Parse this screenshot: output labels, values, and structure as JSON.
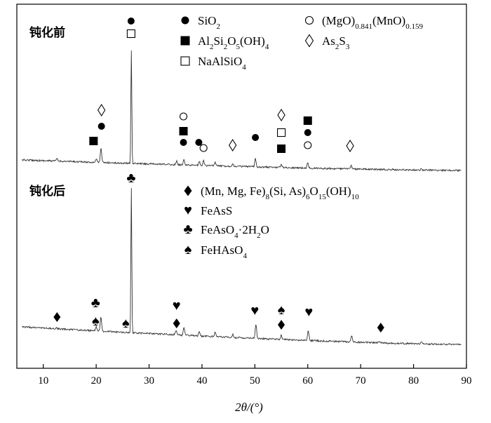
{
  "chart_data": {
    "type": "line",
    "xlabel": "2θ/(°)",
    "xlim": [
      5,
      90
    ],
    "x_ticks": [
      10,
      20,
      30,
      40,
      50,
      60,
      70,
      80,
      90
    ],
    "y_ticks_shown": false,
    "grid": false,
    "series": [
      {
        "name": "钝化前",
        "peaks": [
          {
            "x": 12.6,
            "h": 0.02
          },
          {
            "x": 20.0,
            "h": 0.03
          },
          {
            "x": 20.9,
            "h": 0.12
          },
          {
            "x": 26.65,
            "h": 1.0
          },
          {
            "x": 35.2,
            "h": 0.03
          },
          {
            "x": 36.6,
            "h": 0.05
          },
          {
            "x": 39.5,
            "h": 0.03
          },
          {
            "x": 40.3,
            "h": 0.04
          },
          {
            "x": 42.5,
            "h": 0.03
          },
          {
            "x": 45.8,
            "h": 0.02
          },
          {
            "x": 50.1,
            "h": 0.07
          },
          {
            "x": 55.0,
            "h": 0.03
          },
          {
            "x": 60.0,
            "h": 0.05
          },
          {
            "x": 68.2,
            "h": 0.03
          },
          {
            "x": 81.5,
            "h": 0.01
          }
        ]
      },
      {
        "name": "钝化后",
        "peaks": [
          {
            "x": 12.5,
            "h": 0.01
          },
          {
            "x": 20.0,
            "h": 0.03
          },
          {
            "x": 20.9,
            "h": 0.1
          },
          {
            "x": 26.65,
            "h": 1.0
          },
          {
            "x": 35.1,
            "h": 0.03
          },
          {
            "x": 36.6,
            "h": 0.05
          },
          {
            "x": 39.5,
            "h": 0.03
          },
          {
            "x": 42.5,
            "h": 0.03
          },
          {
            "x": 45.8,
            "h": 0.02
          },
          {
            "x": 50.2,
            "h": 0.1
          },
          {
            "x": 55.0,
            "h": 0.03
          },
          {
            "x": 60.1,
            "h": 0.07
          },
          {
            "x": 68.3,
            "h": 0.04
          },
          {
            "x": 73.5,
            "h": 0.01
          },
          {
            "x": 81.5,
            "h": 0.01
          }
        ]
      }
    ],
    "legend_before": [
      {
        "symbol": "filled-circle",
        "html": "SiO<tspan baseline-shift='sub' font-size='11'>2</tspan>"
      },
      {
        "symbol": "open-circle",
        "html": "(MgO)<tspan baseline-shift='sub' font-size='11'>0.841</tspan>(MnO)<tspan baseline-shift='sub' font-size='11'>0.159</tspan>"
      },
      {
        "symbol": "filled-square",
        "html": "Al<tspan baseline-shift='sub' font-size='11'>2</tspan>Si<tspan baseline-shift='sub' font-size='11'>2</tspan>O<tspan baseline-shift='sub' font-size='11'>5</tspan>(OH)<tspan baseline-shift='sub' font-size='11'>4</tspan>"
      },
      {
        "symbol": "open-diamond",
        "html": "As<tspan baseline-shift='sub' font-size='11'>2</tspan>S<tspan baseline-shift='sub' font-size='11'>3</tspan>"
      },
      {
        "symbol": "open-square",
        "html": "NaAlSiO<tspan baseline-shift='sub' font-size='11'>4</tspan>"
      }
    ],
    "legend_after": [
      {
        "symbol": "filled-diamond",
        "html": "(Mn, Mg, Fe)<tspan baseline-shift='sub' font-size='11'>8</tspan>(Si, As)<tspan baseline-shift='sub' font-size='11'>6</tspan>O<tspan baseline-shift='sub' font-size='11'>15</tspan>(OH)<tspan baseline-shift='sub' font-size='11'>10</tspan>"
      },
      {
        "symbol": "heart",
        "html": "FeAsS"
      },
      {
        "symbol": "club",
        "html": "FeAsO<tspan baseline-shift='sub' font-size='11'>4</tspan>·2H<tspan baseline-shift='sub' font-size='11'>2</tspan>O"
      },
      {
        "symbol": "spade",
        "html": "FeHAsO<tspan baseline-shift='sub' font-size='11'>4</tspan>"
      }
    ],
    "markers_before": [
      {
        "x": 21.0,
        "symbols": [
          "open-diamond",
          "filled-circle"
        ]
      },
      {
        "x": 19.5,
        "symbols": [
          "filled-square"
        ]
      },
      {
        "x": 26.6,
        "symbols": [
          "filled-circle",
          "open-square"
        ]
      },
      {
        "x": 36.5,
        "symbols": [
          "open-circle",
          "filled-square",
          "filled-circle"
        ]
      },
      {
        "x": 39.4,
        "symbols": [
          "filled-circle"
        ]
      },
      {
        "x": 40.3,
        "symbols": [
          "open-circle"
        ]
      },
      {
        "x": 45.8,
        "symbols": [
          "open-diamond"
        ]
      },
      {
        "x": 50.1,
        "symbols": [
          "filled-circle"
        ]
      },
      {
        "x": 55.0,
        "symbols": [
          "open-diamond",
          "open-square",
          "filled-square"
        ]
      },
      {
        "x": 60.0,
        "symbols": [
          "filled-square",
          "filled-circle",
          "open-circle"
        ]
      },
      {
        "x": 68.0,
        "symbols": [
          "open-diamond"
        ]
      }
    ],
    "markers_after": [
      {
        "x": 12.6,
        "symbols": [
          "filled-diamond"
        ]
      },
      {
        "x": 19.9,
        "symbols": [
          "club",
          "spade"
        ]
      },
      {
        "x": 25.6,
        "symbols": [
          "spade"
        ]
      },
      {
        "x": 26.6,
        "symbols": [
          "club"
        ]
      },
      {
        "x": 35.2,
        "symbols": [
          "heart",
          "filled-diamond"
        ]
      },
      {
        "x": 50.0,
        "symbols": [
          "heart"
        ]
      },
      {
        "x": 55.0,
        "symbols": [
          "spade",
          "filled-diamond"
        ]
      },
      {
        "x": 60.2,
        "symbols": [
          "heart"
        ]
      },
      {
        "x": 73.8,
        "symbols": [
          "filled-diamond"
        ]
      }
    ]
  }
}
